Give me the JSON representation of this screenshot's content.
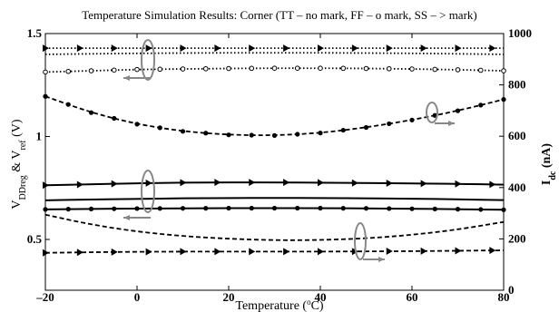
{
  "chart_data": {
    "type": "line",
    "title": "Temperature Simulation Results: Corner (TT – no mark, FF – o mark, SS – > mark)",
    "xlabel": "Temperature (°C)",
    "xlabel_parts": [
      "Temperature (",
      "o",
      "C)"
    ],
    "ylabel_left": "V_DDreg & V_ref (V)",
    "ylabel_left_parts": [
      "V",
      "DDreg",
      " & V",
      "ref",
      " (V)"
    ],
    "ylabel_right": "I_dc (nA)",
    "ylabel_right_parts": [
      "I",
      "dc",
      " (nA)"
    ],
    "xlim": [
      -20,
      80
    ],
    "ylim_left": [
      0.5,
      1.5
    ],
    "ylim_right": [
      0,
      1000
    ],
    "x_ticks": [
      "-20",
      "0",
      "20",
      "40",
      "60",
      "80"
    ],
    "y_left_ticks": [
      "0.5",
      "1",
      "1.5"
    ],
    "y_right_ticks": [
      "0",
      "200",
      "400",
      "600",
      "800",
      "1000"
    ],
    "grid": false,
    "series": [
      {
        "group": "VDDreg",
        "corner": "SS",
        "axis": "left",
        "style": "solid",
        "marker": "triangle",
        "x": [
          -20,
          -10,
          0,
          10,
          20,
          30,
          40,
          50,
          60,
          70,
          80
        ],
        "y": [
          0.763,
          0.768,
          0.773,
          0.776,
          0.777,
          0.777,
          0.776,
          0.774,
          0.772,
          0.77,
          0.766
        ]
      },
      {
        "group": "VDDreg",
        "corner": "TT",
        "axis": "left",
        "style": "solid",
        "marker": "none",
        "x": [
          -20,
          -10,
          0,
          10,
          20,
          30,
          40,
          50,
          60,
          70,
          80
        ],
        "y": [
          0.69,
          0.694,
          0.697,
          0.7,
          0.701,
          0.702,
          0.701,
          0.7,
          0.698,
          0.695,
          0.691
        ]
      },
      {
        "group": "VDDreg",
        "corner": "FF",
        "axis": "left",
        "style": "solid",
        "marker": "dot",
        "x": [
          -20,
          -10,
          0,
          10,
          20,
          30,
          40,
          50,
          60,
          70,
          80
        ],
        "y": [
          0.646,
          0.648,
          0.65,
          0.651,
          0.652,
          0.652,
          0.652,
          0.651,
          0.649,
          0.647,
          0.644
        ]
      },
      {
        "group": "Vref",
        "corner": "SS",
        "axis": "left",
        "style": "dashed",
        "marker": "triangle",
        "x": [
          -20,
          -10,
          0,
          10,
          20,
          30,
          40,
          50,
          60,
          70,
          80
        ],
        "y": [
          0.435,
          0.438,
          0.44,
          0.441,
          0.441,
          0.441,
          0.441,
          0.442,
          0.443,
          0.445,
          0.447
        ]
      },
      {
        "group": "Vref",
        "corner": "TT",
        "axis": "left",
        "style": "dashed",
        "marker": "none",
        "x": [
          -20,
          -10,
          0,
          10,
          20,
          30,
          40,
          50,
          60,
          70,
          80
        ],
        "y": [
          0.62,
          0.572,
          0.538,
          0.516,
          0.503,
          0.496,
          0.497,
          0.505,
          0.522,
          0.548,
          0.585
        ]
      },
      {
        "group": "Vref",
        "corner": "FF",
        "axis": "left",
        "style": "dashed",
        "marker": "dot",
        "x": [
          -20,
          -10,
          0,
          10,
          20,
          30,
          40,
          50,
          60,
          70,
          80
        ],
        "y": [
          1.195,
          1.116,
          1.06,
          1.025,
          1.008,
          1.005,
          1.017,
          1.044,
          1.08,
          1.125,
          1.18
        ]
      },
      {
        "group": "Idc",
        "corner": "SS",
        "axis": "right",
        "style": "dotted",
        "marker": "triangle",
        "x": [
          -20,
          -10,
          0,
          10,
          20,
          30,
          40,
          50,
          60,
          70,
          80
        ],
        "y": [
          943,
          943,
          943,
          943,
          943,
          943,
          943,
          943,
          943,
          943,
          943
        ]
      },
      {
        "group": "Idc",
        "corner": "TT",
        "axis": "right",
        "style": "dotted",
        "marker": "none",
        "x": [
          -20,
          -10,
          0,
          10,
          20,
          30,
          40,
          50,
          60,
          70,
          80
        ],
        "y": [
          919,
          921,
          923,
          924,
          925,
          925,
          925,
          924,
          923,
          921,
          919
        ]
      },
      {
        "group": "Idc",
        "corner": "FF",
        "axis": "right",
        "style": "dotted",
        "marker": "circle",
        "x": [
          -20,
          -10,
          0,
          10,
          20,
          30,
          40,
          50,
          60,
          70,
          80
        ],
        "y": [
          850,
          855,
          860,
          862,
          864,
          865,
          865,
          864,
          862,
          859,
          855
        ]
      }
    ]
  }
}
